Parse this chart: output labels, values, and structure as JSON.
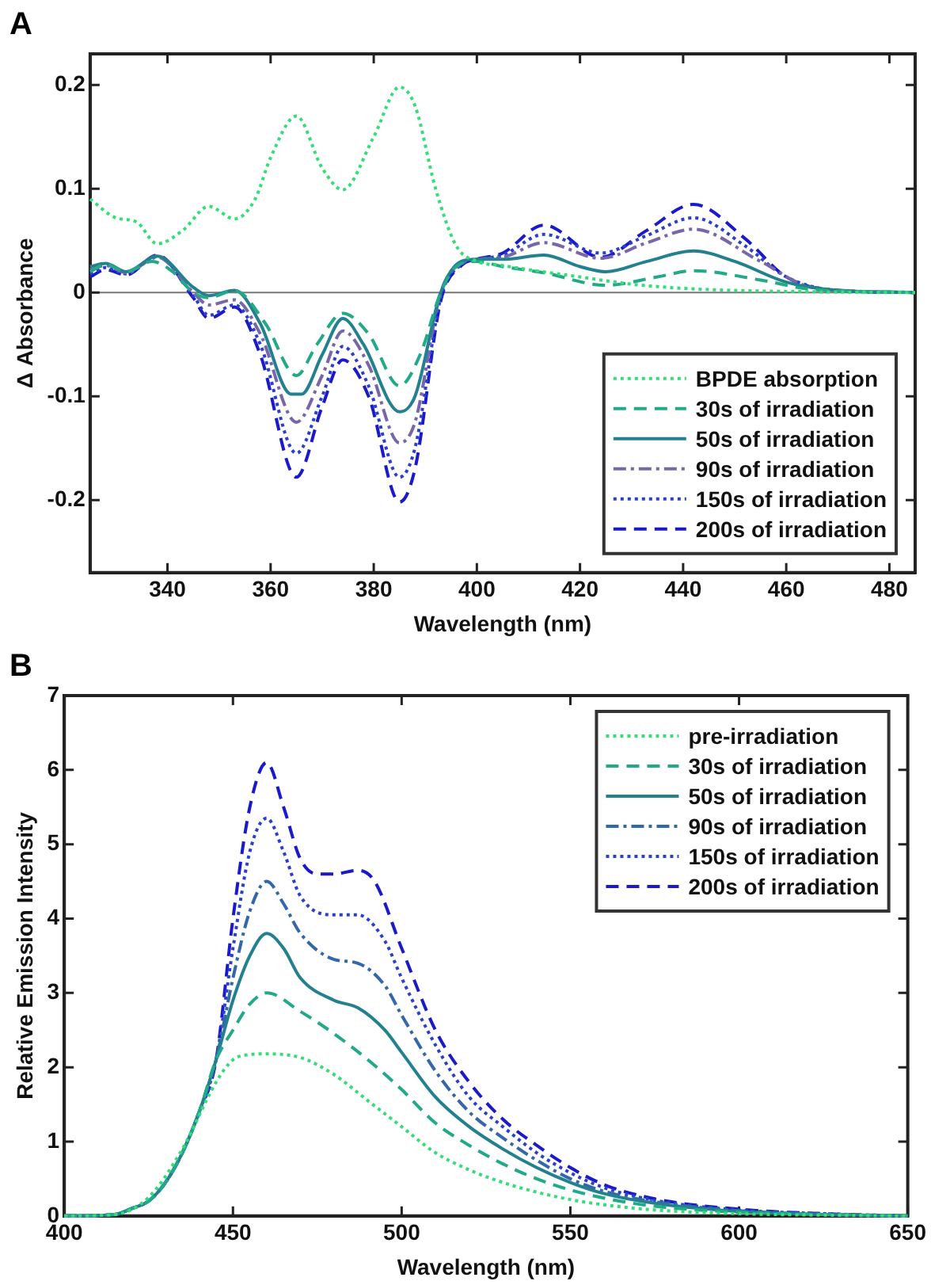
{
  "chart_data": [
    {
      "type": "line",
      "title": "A",
      "xlabel": "Wavelength (nm)",
      "ylabel": "Δ Absorbance",
      "xlim": [
        325,
        485
      ],
      "xticks": [
        340,
        360,
        380,
        400,
        420,
        440,
        460,
        480
      ],
      "ylim": [
        -0.27,
        0.23
      ],
      "yticks": [
        -0.2,
        -0.1,
        0,
        0.1,
        0.2
      ],
      "grid": false,
      "legend": "bottom right",
      "marker": "none",
      "ref_lines": [
        {
          "axis": "y",
          "value": 0,
          "color": "#777777",
          "line_style": "solid"
        }
      ],
      "series": [
        {
          "name": "BPDE absorption",
          "color": "#33dd77",
          "line_style": "dotted",
          "x": [
            325,
            330,
            334,
            338,
            343,
            348,
            353,
            357,
            360,
            365,
            370,
            374,
            380,
            385,
            388,
            392,
            396,
            400,
            405,
            410,
            420,
            430,
            440,
            450,
            460,
            485
          ],
          "values": [
            0.09,
            0.072,
            0.068,
            0.047,
            0.06,
            0.083,
            0.071,
            0.09,
            0.13,
            0.17,
            0.12,
            0.099,
            0.15,
            0.198,
            0.18,
            0.1,
            0.045,
            0.03,
            0.026,
            0.022,
            0.015,
            0.008,
            0.004,
            0.002,
            0.001,
            0
          ]
        },
        {
          "name": "30s of irradiation",
          "color": "#22aa88",
          "line_style": "dashed",
          "x": [
            325,
            328,
            332,
            337,
            341,
            345,
            348,
            353,
            359,
            365,
            369,
            374,
            379,
            385,
            389,
            393,
            396,
            400,
            405,
            413,
            425,
            435,
            442,
            455,
            465,
            485
          ],
          "values": [
            0.02,
            0.027,
            0.02,
            0.03,
            0.02,
            0,
            -0.005,
            0.002,
            -0.03,
            -0.08,
            -0.05,
            -0.02,
            -0.04,
            -0.09,
            -0.06,
            0,
            0.025,
            0.03,
            0.025,
            0.019,
            0.007,
            0.015,
            0.021,
            0.012,
            0.003,
            0
          ]
        },
        {
          "name": "50s of irradiation",
          "color": "#22808f",
          "line_style": "solid",
          "x": [
            325,
            328,
            332,
            338,
            345,
            348,
            353,
            358,
            364,
            366,
            370,
            374,
            378,
            385,
            388,
            393,
            397,
            400,
            405,
            413,
            420,
            425,
            433,
            442,
            450,
            460,
            470,
            485
          ],
          "values": [
            0.025,
            0.028,
            0.02,
            0.035,
            0.005,
            -0.003,
            0.002,
            -0.03,
            -0.098,
            -0.098,
            -0.06,
            -0.025,
            -0.05,
            -0.115,
            -0.1,
            0,
            0.03,
            0.032,
            0.032,
            0.036,
            0.025,
            0.02,
            0.03,
            0.04,
            0.03,
            0.01,
            0.002,
            0
          ]
        },
        {
          "name": "90s of irradiation",
          "color": "#7766aa",
          "line_style": "dashdot",
          "x": [
            325,
            328,
            332,
            338,
            345,
            348,
            353,
            358,
            365,
            370,
            374,
            379,
            385,
            388,
            393,
            397,
            400,
            405,
            413,
            424,
            433,
            442,
            455,
            465,
            485
          ],
          "values": [
            0.022,
            0.026,
            0.019,
            0.034,
            0.0,
            -0.012,
            -0.007,
            -0.04,
            -0.125,
            -0.08,
            -0.037,
            -0.07,
            -0.145,
            -0.125,
            0,
            0.028,
            0.032,
            0.034,
            0.048,
            0.033,
            0.048,
            0.061,
            0.03,
            0.005,
            0
          ]
        },
        {
          "name": "150s of irradiation",
          "color": "#2a3fd0",
          "line_style": "dotted",
          "x": [
            325,
            328,
            332,
            338,
            345,
            348,
            353,
            358,
            365,
            370,
            374,
            379,
            385,
            388,
            393,
            397,
            400,
            405,
            413,
            424,
            433,
            442,
            452,
            460,
            470,
            485
          ],
          "values": [
            0.018,
            0.024,
            0.018,
            0.035,
            -0.003,
            -0.022,
            -0.012,
            -0.05,
            -0.155,
            -0.1,
            -0.052,
            -0.09,
            -0.178,
            -0.15,
            -0.005,
            0.027,
            0.032,
            0.036,
            0.056,
            0.038,
            0.055,
            0.072,
            0.045,
            0.015,
            0.002,
            0
          ]
        },
        {
          "name": "200s of irradiation",
          "color": "#1a1acc",
          "line_style": "dashed",
          "x": [
            325,
            328,
            332,
            338,
            345,
            348,
            353,
            358,
            365,
            370,
            374,
            379,
            385,
            388,
            393,
            397,
            400,
            405,
            413,
            424,
            433,
            442,
            452,
            460,
            470,
            485
          ],
          "values": [
            0.015,
            0.022,
            0.017,
            0.036,
            -0.005,
            -0.025,
            -0.014,
            -0.06,
            -0.178,
            -0.11,
            -0.065,
            -0.1,
            -0.202,
            -0.17,
            -0.008,
            0.026,
            0.032,
            0.038,
            0.065,
            0.034,
            0.06,
            0.085,
            0.052,
            0.015,
            0.002,
            0
          ]
        }
      ]
    },
    {
      "type": "line",
      "title": "B",
      "xlabel": "Wavelength (nm)",
      "ylabel": "Relative Emission Intensity",
      "xlim": [
        400,
        650
      ],
      "xticks": [
        400,
        450,
        500,
        550,
        600,
        650
      ],
      "ylim": [
        0,
        7
      ],
      "yticks": [
        0,
        1,
        2,
        3,
        4,
        5,
        6,
        7
      ],
      "grid": false,
      "legend": "top right",
      "marker": "none",
      "series": [
        {
          "name": "pre-irradiation",
          "color": "#33dd77",
          "line_style": "dotted",
          "x": [
            400,
            415,
            425,
            435,
            445,
            450,
            455,
            460,
            470,
            480,
            490,
            500,
            510,
            520,
            530,
            540,
            550,
            560,
            575,
            600,
            625,
            650
          ],
          "values": [
            0,
            0.02,
            0.25,
            0.9,
            1.8,
            2.1,
            2.17,
            2.18,
            2.13,
            1.9,
            1.55,
            1.2,
            0.85,
            0.62,
            0.45,
            0.32,
            0.22,
            0.15,
            0.08,
            0.03,
            0.01,
            0
          ]
        },
        {
          "name": "30s of irradiation",
          "color": "#22aa88",
          "line_style": "dashed",
          "x": [
            400,
            415,
            420,
            425,
            430,
            435,
            440,
            445,
            450,
            455,
            460,
            470,
            480,
            490,
            500,
            510,
            520,
            530,
            540,
            550,
            560,
            575,
            600,
            625,
            650
          ],
          "values": [
            0,
            0.02,
            0.1,
            0.2,
            0.45,
            0.85,
            1.4,
            2.1,
            2.5,
            2.85,
            3.0,
            2.75,
            2.45,
            2.1,
            1.7,
            1.25,
            0.95,
            0.7,
            0.5,
            0.35,
            0.24,
            0.13,
            0.05,
            0.02,
            0
          ]
        },
        {
          "name": "50s of irradiation",
          "color": "#22808f",
          "line_style": "solid",
          "x": [
            400,
            415,
            420,
            425,
            430,
            435,
            440,
            445,
            450,
            455,
            460,
            465,
            470,
            480,
            487,
            495,
            500,
            510,
            520,
            530,
            540,
            550,
            560,
            575,
            600,
            625,
            650
          ],
          "values": [
            0,
            0.02,
            0.1,
            0.2,
            0.45,
            0.85,
            1.4,
            2.1,
            2.9,
            3.5,
            3.8,
            3.6,
            3.2,
            2.9,
            2.8,
            2.5,
            2.2,
            1.6,
            1.2,
            0.9,
            0.65,
            0.45,
            0.3,
            0.17,
            0.06,
            0.02,
            0
          ]
        },
        {
          "name": "90s of irradiation",
          "color": "#3366aa",
          "line_style": "dashdot",
          "x": [
            400,
            415,
            420,
            425,
            430,
            435,
            440,
            445,
            450,
            455,
            460,
            465,
            470,
            480,
            487,
            495,
            500,
            510,
            520,
            530,
            540,
            550,
            560,
            575,
            600,
            625,
            650
          ],
          "values": [
            0,
            0.02,
            0.1,
            0.2,
            0.45,
            0.85,
            1.4,
            2.1,
            3.2,
            4.1,
            4.5,
            4.2,
            3.8,
            3.45,
            3.4,
            3.1,
            2.7,
            1.95,
            1.4,
            1.05,
            0.75,
            0.5,
            0.33,
            0.19,
            0.07,
            0.02,
            0
          ]
        },
        {
          "name": "150s of irradiation",
          "color": "#2a3fd0",
          "line_style": "dotted",
          "x": [
            400,
            415,
            420,
            425,
            430,
            435,
            440,
            445,
            450,
            455,
            460,
            465,
            470,
            480,
            487,
            495,
            500,
            510,
            520,
            530,
            540,
            550,
            560,
            575,
            600,
            625,
            650
          ],
          "values": [
            0,
            0.02,
            0.1,
            0.2,
            0.45,
            0.85,
            1.4,
            2.1,
            3.6,
            4.9,
            5.35,
            4.9,
            4.3,
            4.05,
            4.05,
            3.7,
            3.2,
            2.3,
            1.6,
            1.2,
            0.85,
            0.58,
            0.38,
            0.21,
            0.08,
            0.03,
            0
          ]
        },
        {
          "name": "200s of irradiation",
          "color": "#1a1acc",
          "line_style": "dashed",
          "x": [
            400,
            415,
            420,
            425,
            430,
            435,
            440,
            445,
            450,
            455,
            460,
            465,
            470,
            475,
            480,
            487,
            492,
            500,
            510,
            520,
            530,
            540,
            550,
            560,
            575,
            600,
            625,
            650
          ],
          "values": [
            0,
            0.02,
            0.1,
            0.2,
            0.45,
            0.85,
            1.4,
            2.1,
            4.0,
            5.5,
            6.1,
            5.5,
            4.8,
            4.6,
            4.6,
            4.65,
            4.5,
            3.6,
            2.5,
            1.8,
            1.3,
            0.95,
            0.65,
            0.42,
            0.23,
            0.09,
            0.03,
            0
          ]
        }
      ]
    }
  ]
}
